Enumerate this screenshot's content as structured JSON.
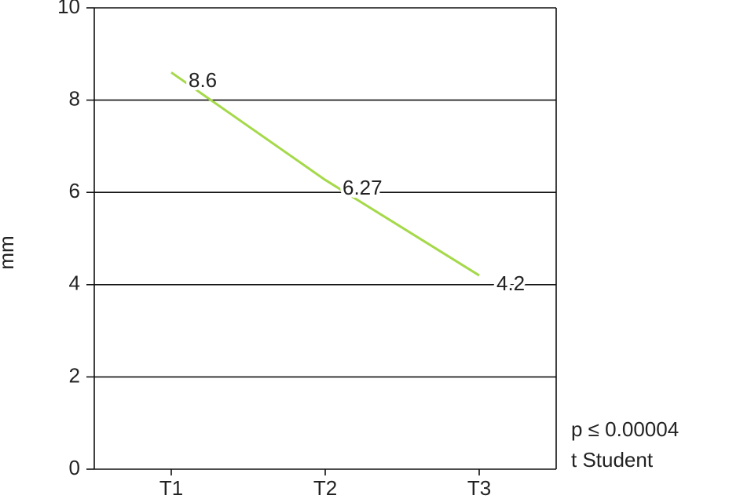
{
  "chart_data": {
    "type": "line",
    "y_label": "mm",
    "categories": [
      "T1",
      "T2",
      "T3"
    ],
    "series": [
      {
        "name": null,
        "color": "#a5d94a",
        "values": [
          8.6,
          6.27,
          4.2
        ]
      }
    ],
    "ylim": [
      0,
      10
    ],
    "yticks": [
      0,
      2,
      4,
      6,
      8,
      10
    ],
    "grid": true,
    "annotations": [
      "p ≤ 0.00004",
      "t Student"
    ]
  }
}
